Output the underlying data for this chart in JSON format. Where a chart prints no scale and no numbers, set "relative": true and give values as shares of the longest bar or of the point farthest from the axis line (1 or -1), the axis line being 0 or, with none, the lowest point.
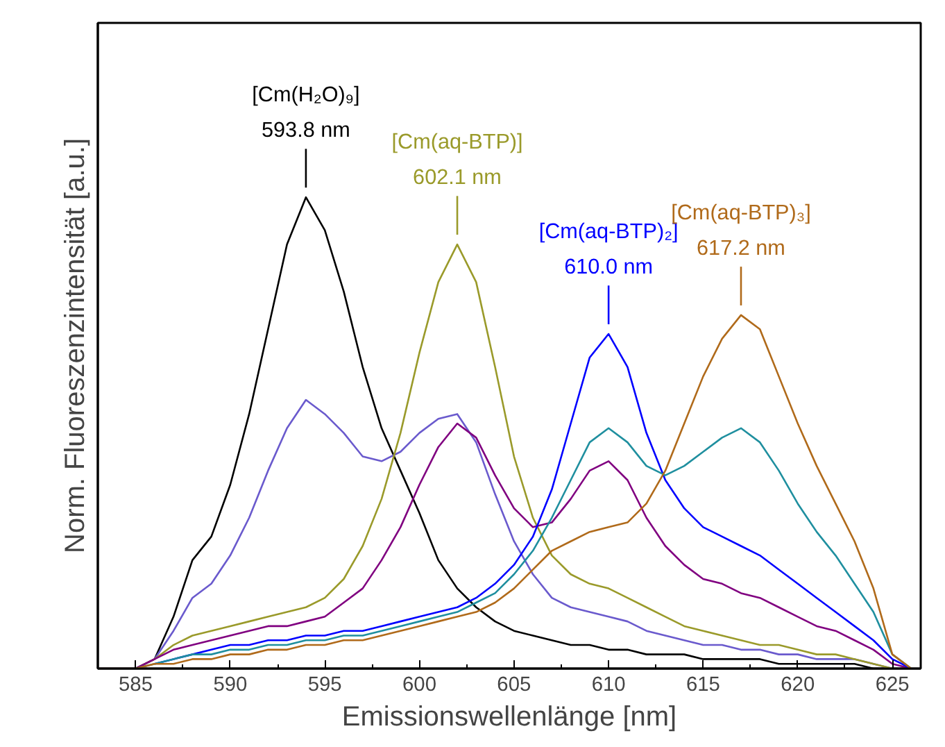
{
  "chart_data": {
    "type": "line",
    "relative": true,
    "xlabel": "Emissionswellenlänge [nm]",
    "ylabel": "Norm. Fluoreszenzintensität [a.u.]",
    "xlim": [
      583,
      626.5
    ],
    "xticks": [
      585,
      590,
      595,
      600,
      605,
      610,
      615,
      620,
      625
    ],
    "tick_labels": "x",
    "grid": false,
    "line_style": "solid",
    "x": [
      583,
      585,
      586,
      587,
      588,
      589,
      590,
      591,
      592,
      593,
      594,
      595,
      596,
      597,
      598,
      599,
      600,
      601,
      602,
      603,
      604,
      605,
      606,
      607,
      608,
      609,
      610,
      611,
      612,
      613,
      614,
      615,
      616,
      617,
      618,
      619,
      620,
      621,
      622,
      623,
      624,
      625,
      626
    ],
    "series": [
      {
        "color": "#000000",
        "values": [
          0,
          0,
          0.02,
          0.11,
          0.23,
          0.28,
          0.39,
          0.54,
          0.72,
          0.9,
          1.0,
          0.93,
          0.8,
          0.64,
          0.51,
          0.42,
          0.33,
          0.23,
          0.17,
          0.13,
          0.1,
          0.08,
          0.07,
          0.06,
          0.05,
          0.05,
          0.04,
          0.04,
          0.03,
          0.03,
          0.03,
          0.02,
          0.02,
          0.02,
          0.02,
          0.01,
          0.01,
          0.01,
          0.01,
          0.01,
          0,
          0,
          0
        ]
      },
      {
        "color": "#6a5acd",
        "values": [
          0,
          0,
          0.02,
          0.08,
          0.15,
          0.18,
          0.24,
          0.32,
          0.42,
          0.51,
          0.57,
          0.54,
          0.5,
          0.45,
          0.44,
          0.46,
          0.5,
          0.53,
          0.54,
          0.48,
          0.37,
          0.27,
          0.2,
          0.15,
          0.13,
          0.12,
          0.11,
          0.1,
          0.08,
          0.07,
          0.06,
          0.05,
          0.05,
          0.04,
          0.04,
          0.03,
          0.03,
          0.02,
          0.02,
          0.02,
          0.01,
          0,
          0
        ]
      },
      {
        "color": "#9a9a2a",
        "values": [
          0,
          0,
          0.02,
          0.05,
          0.07,
          0.08,
          0.09,
          0.1,
          0.11,
          0.12,
          0.13,
          0.15,
          0.19,
          0.26,
          0.36,
          0.5,
          0.67,
          0.82,
          0.9,
          0.82,
          0.64,
          0.45,
          0.32,
          0.24,
          0.2,
          0.18,
          0.17,
          0.15,
          0.13,
          0.11,
          0.09,
          0.08,
          0.07,
          0.06,
          0.05,
          0.05,
          0.04,
          0.03,
          0.03,
          0.02,
          0.01,
          0,
          0
        ]
      },
      {
        "color": "#800080",
        "values": [
          0,
          0,
          0.02,
          0.04,
          0.05,
          0.06,
          0.07,
          0.08,
          0.09,
          0.09,
          0.1,
          0.11,
          0.14,
          0.17,
          0.23,
          0.3,
          0.39,
          0.47,
          0.52,
          0.49,
          0.41,
          0.34,
          0.3,
          0.31,
          0.36,
          0.42,
          0.44,
          0.4,
          0.32,
          0.26,
          0.22,
          0.19,
          0.18,
          0.16,
          0.15,
          0.13,
          0.11,
          0.09,
          0.08,
          0.06,
          0.04,
          0.01,
          0
        ]
      },
      {
        "color": "#0000ff",
        "x": [
          586,
          587,
          588,
          589,
          590,
          591,
          592,
          593,
          594,
          595,
          596,
          597,
          598,
          599,
          600,
          601,
          602,
          603,
          604,
          605,
          606,
          607,
          608,
          609,
          610,
          611,
          612,
          613,
          614,
          615,
          616,
          617,
          618,
          619,
          620,
          621,
          622,
          623,
          624,
          625,
          626
        ],
        "values": [
          0.01,
          0.02,
          0.03,
          0.04,
          0.05,
          0.05,
          0.06,
          0.06,
          0.07,
          0.07,
          0.08,
          0.08,
          0.09,
          0.1,
          0.11,
          0.12,
          0.13,
          0.15,
          0.18,
          0.22,
          0.28,
          0.38,
          0.52,
          0.66,
          0.71,
          0.64,
          0.5,
          0.4,
          0.34,
          0.3,
          0.28,
          0.26,
          0.24,
          0.21,
          0.18,
          0.15,
          0.12,
          0.09,
          0.06,
          0.02,
          0
        ]
      },
      {
        "color": "#1f8f9f",
        "values": [
          0,
          0,
          0.01,
          0.02,
          0.03,
          0.03,
          0.04,
          0.04,
          0.05,
          0.05,
          0.06,
          0.06,
          0.07,
          0.07,
          0.08,
          0.09,
          0.1,
          0.11,
          0.12,
          0.14,
          0.16,
          0.2,
          0.25,
          0.32,
          0.4,
          0.48,
          0.51,
          0.48,
          0.43,
          0.41,
          0.43,
          0.46,
          0.49,
          0.51,
          0.48,
          0.42,
          0.35,
          0.29,
          0.24,
          0.18,
          0.12,
          0.03,
          0
        ]
      },
      {
        "color": "#b06a1a",
        "values": [
          0,
          0,
          0.01,
          0.01,
          0.02,
          0.02,
          0.03,
          0.03,
          0.04,
          0.04,
          0.05,
          0.05,
          0.06,
          0.06,
          0.07,
          0.08,
          0.09,
          0.1,
          0.11,
          0.12,
          0.14,
          0.17,
          0.21,
          0.25,
          0.27,
          0.29,
          0.3,
          0.31,
          0.35,
          0.42,
          0.52,
          0.62,
          0.7,
          0.75,
          0.72,
          0.62,
          0.52,
          0.43,
          0.35,
          0.27,
          0.17,
          0.03,
          0
        ]
      }
    ],
    "annotations": [
      {
        "text": "[Cm(H₂O)₉]\n593.8 nm",
        "x": 594,
        "y": 1.0
      },
      {
        "text": "[Cm(aq-BTP)]\n602.1 nm",
        "x": 602,
        "y": 0.9
      },
      {
        "text": "[Cm(aq-BTP)₂]\n610.0 nm",
        "x": 610,
        "y": 0.71
      },
      {
        "text": "[Cm(aq-BTP)₃]\n617.2 nm",
        "x": 617,
        "y": 0.75
      }
    ]
  }
}
